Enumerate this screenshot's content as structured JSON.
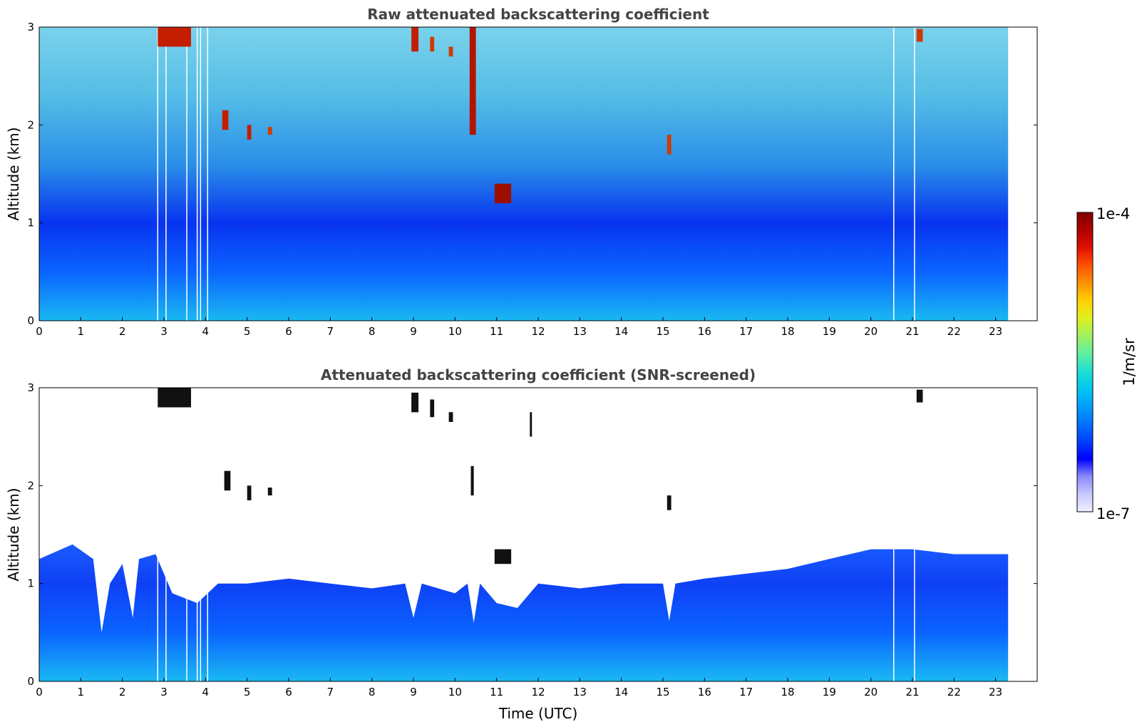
{
  "chart_data": [
    {
      "type": "heatmap",
      "title": "Raw attenuated backscattering coefficient",
      "xlabel": "",
      "ylabel": "Altitude (km)",
      "xlim": [
        0,
        24
      ],
      "ylim": [
        0,
        3
      ],
      "x_ticks": [
        0,
        1,
        2,
        3,
        4,
        5,
        6,
        7,
        8,
        9,
        10,
        11,
        12,
        13,
        14,
        15,
        16,
        17,
        18,
        19,
        20,
        21,
        22,
        23
      ],
      "y_ticks": [
        0,
        1,
        2,
        3
      ],
      "data_end_time": 23.3,
      "background_gradient_by_altitude": [
        {
          "alt": 0.0,
          "color": "#19b9f2"
        },
        {
          "alt": 0.5,
          "color": "#0a64ff"
        },
        {
          "alt": 1.0,
          "color": "#0833f0"
        },
        {
          "alt": 1.6,
          "color": "#2a8fe8"
        },
        {
          "alt": 2.3,
          "color": "#55bde6"
        },
        {
          "alt": 3.0,
          "color": "#7ad2ec"
        }
      ],
      "strong_echo_features": [
        {
          "t0": 2.85,
          "t1": 3.65,
          "a0": 2.8,
          "a1": 3.0,
          "color": "#c41e00"
        },
        {
          "t0": 8.95,
          "t1": 9.12,
          "a0": 2.75,
          "a1": 3.0,
          "color": "#c41e00"
        },
        {
          "t0": 9.4,
          "t1": 9.5,
          "a0": 2.75,
          "a1": 2.9,
          "color": "#d03a00"
        },
        {
          "t0": 9.85,
          "t1": 9.95,
          "a0": 2.7,
          "a1": 2.8,
          "color": "#d03a00"
        },
        {
          "t0": 10.35,
          "t1": 10.5,
          "a0": 1.9,
          "a1": 3.0,
          "color": "#b31400"
        },
        {
          "t0": 10.95,
          "t1": 11.35,
          "a0": 1.2,
          "a1": 1.4,
          "color": "#9a0f00"
        },
        {
          "t0": 4.4,
          "t1": 4.55,
          "a0": 1.95,
          "a1": 2.15,
          "color": "#c41e00"
        },
        {
          "t0": 5.0,
          "t1": 5.1,
          "a0": 1.85,
          "a1": 2.0,
          "color": "#c41e00"
        },
        {
          "t0": 5.5,
          "t1": 5.6,
          "a0": 1.9,
          "a1": 1.98,
          "color": "#d03a00"
        },
        {
          "t0": 15.1,
          "t1": 15.2,
          "a0": 1.7,
          "a1": 1.9,
          "color": "#d03a00"
        },
        {
          "t0": 21.1,
          "t1": 21.25,
          "a0": 2.85,
          "a1": 2.98,
          "color": "#d03a00"
        }
      ],
      "white_gaps_time": [
        2.85,
        3.05,
        3.55,
        3.8,
        3.88,
        4.05,
        20.55,
        21.05
      ]
    },
    {
      "type": "heatmap",
      "title": "Attenuated backscattering coefficient (SNR-screened)",
      "xlabel": "Time (UTC)",
      "ylabel": "Altitude (km)",
      "xlim": [
        0,
        24
      ],
      "ylim": [
        0,
        3
      ],
      "x_ticks": [
        0,
        1,
        2,
        3,
        4,
        5,
        6,
        7,
        8,
        9,
        10,
        11,
        12,
        13,
        14,
        15,
        16,
        17,
        18,
        19,
        20,
        21,
        22,
        23
      ],
      "y_ticks": [
        0,
        1,
        2,
        3
      ],
      "data_end_time": 23.3,
      "screened_top_altitude": [
        {
          "t": 0.0,
          "alt": 1.25
        },
        {
          "t": 0.8,
          "alt": 1.4
        },
        {
          "t": 1.3,
          "alt": 1.25
        },
        {
          "t": 1.5,
          "alt": 0.5
        },
        {
          "t": 1.7,
          "alt": 1.0
        },
        {
          "t": 2.0,
          "alt": 1.2
        },
        {
          "t": 2.25,
          "alt": 0.65
        },
        {
          "t": 2.4,
          "alt": 1.25
        },
        {
          "t": 2.8,
          "alt": 1.3
        },
        {
          "t": 3.2,
          "alt": 0.9
        },
        {
          "t": 3.8,
          "alt": 0.8
        },
        {
          "t": 4.3,
          "alt": 1.0
        },
        {
          "t": 5.0,
          "alt": 1.0
        },
        {
          "t": 6.0,
          "alt": 1.05
        },
        {
          "t": 7.0,
          "alt": 1.0
        },
        {
          "t": 8.0,
          "alt": 0.95
        },
        {
          "t": 8.8,
          "alt": 1.0
        },
        {
          "t": 9.0,
          "alt": 0.65
        },
        {
          "t": 9.2,
          "alt": 1.0
        },
        {
          "t": 10.0,
          "alt": 0.9
        },
        {
          "t": 10.3,
          "alt": 1.0
        },
        {
          "t": 10.45,
          "alt": 0.6
        },
        {
          "t": 10.6,
          "alt": 1.0
        },
        {
          "t": 11.0,
          "alt": 0.8
        },
        {
          "t": 11.5,
          "alt": 0.75
        },
        {
          "t": 12.0,
          "alt": 1.0
        },
        {
          "t": 13.0,
          "alt": 0.95
        },
        {
          "t": 14.0,
          "alt": 1.0
        },
        {
          "t": 15.0,
          "alt": 1.0
        },
        {
          "t": 15.15,
          "alt": 0.62
        },
        {
          "t": 15.3,
          "alt": 1.0
        },
        {
          "t": 16.0,
          "alt": 1.05
        },
        {
          "t": 17.0,
          "alt": 1.1
        },
        {
          "t": 18.0,
          "alt": 1.15
        },
        {
          "t": 19.0,
          "alt": 1.25
        },
        {
          "t": 20.0,
          "alt": 1.35
        },
        {
          "t": 21.0,
          "alt": 1.35
        },
        {
          "t": 22.0,
          "alt": 1.3
        },
        {
          "t": 23.3,
          "alt": 1.3
        }
      ],
      "background_gradient_by_altitude": [
        {
          "alt": 0.0,
          "color": "#19b9f2"
        },
        {
          "alt": 0.5,
          "color": "#0a64ff"
        },
        {
          "alt": 1.0,
          "color": "#0f40f5"
        },
        {
          "alt": 1.4,
          "color": "#1a5cff"
        }
      ],
      "strong_echo_features": [
        {
          "t0": 2.85,
          "t1": 3.65,
          "a0": 2.8,
          "a1": 3.0,
          "color": "#111111"
        },
        {
          "t0": 8.95,
          "t1": 9.12,
          "a0": 2.75,
          "a1": 2.95,
          "color": "#111111"
        },
        {
          "t0": 9.4,
          "t1": 9.5,
          "a0": 2.7,
          "a1": 2.88,
          "color": "#111111"
        },
        {
          "t0": 9.85,
          "t1": 9.95,
          "a0": 2.65,
          "a1": 2.75,
          "color": "#111111"
        },
        {
          "t0": 10.38,
          "t1": 10.45,
          "a0": 1.9,
          "a1": 2.2,
          "color": "#111111"
        },
        {
          "t0": 10.95,
          "t1": 11.35,
          "a0": 1.2,
          "a1": 1.35,
          "color": "#111111"
        },
        {
          "t0": 4.45,
          "t1": 4.6,
          "a0": 1.95,
          "a1": 2.15,
          "color": "#111111"
        },
        {
          "t0": 5.0,
          "t1": 5.1,
          "a0": 1.85,
          "a1": 2.0,
          "color": "#111111"
        },
        {
          "t0": 5.5,
          "t1": 5.6,
          "a0": 1.9,
          "a1": 1.98,
          "color": "#111111"
        },
        {
          "t0": 15.1,
          "t1": 15.2,
          "a0": 1.75,
          "a1": 1.9,
          "color": "#111111"
        },
        {
          "t0": 11.8,
          "t1": 11.85,
          "a0": 2.5,
          "a1": 2.75,
          "color": "#111111"
        },
        {
          "t0": 21.1,
          "t1": 21.25,
          "a0": 2.85,
          "a1": 2.98,
          "color": "#111111"
        }
      ],
      "white_gaps_time": [
        2.85,
        3.05,
        3.55,
        3.8,
        3.88,
        4.05,
        20.55,
        21.05
      ]
    }
  ],
  "colorbar": {
    "label": "1/m/sr",
    "max_label": "1e-4",
    "min_label": "1e-7",
    "colormap": [
      "#f0f0ff",
      "#c8c8ff",
      "#8a8aff",
      "#0000ff",
      "#0040ff",
      "#0070ff",
      "#00a0ff",
      "#00c8f0",
      "#20e0d0",
      "#60f0a0",
      "#a0f060",
      "#e0f020",
      "#ffd000",
      "#ff9000",
      "#ff5000",
      "#e01000",
      "#b00000",
      "#800000"
    ]
  }
}
